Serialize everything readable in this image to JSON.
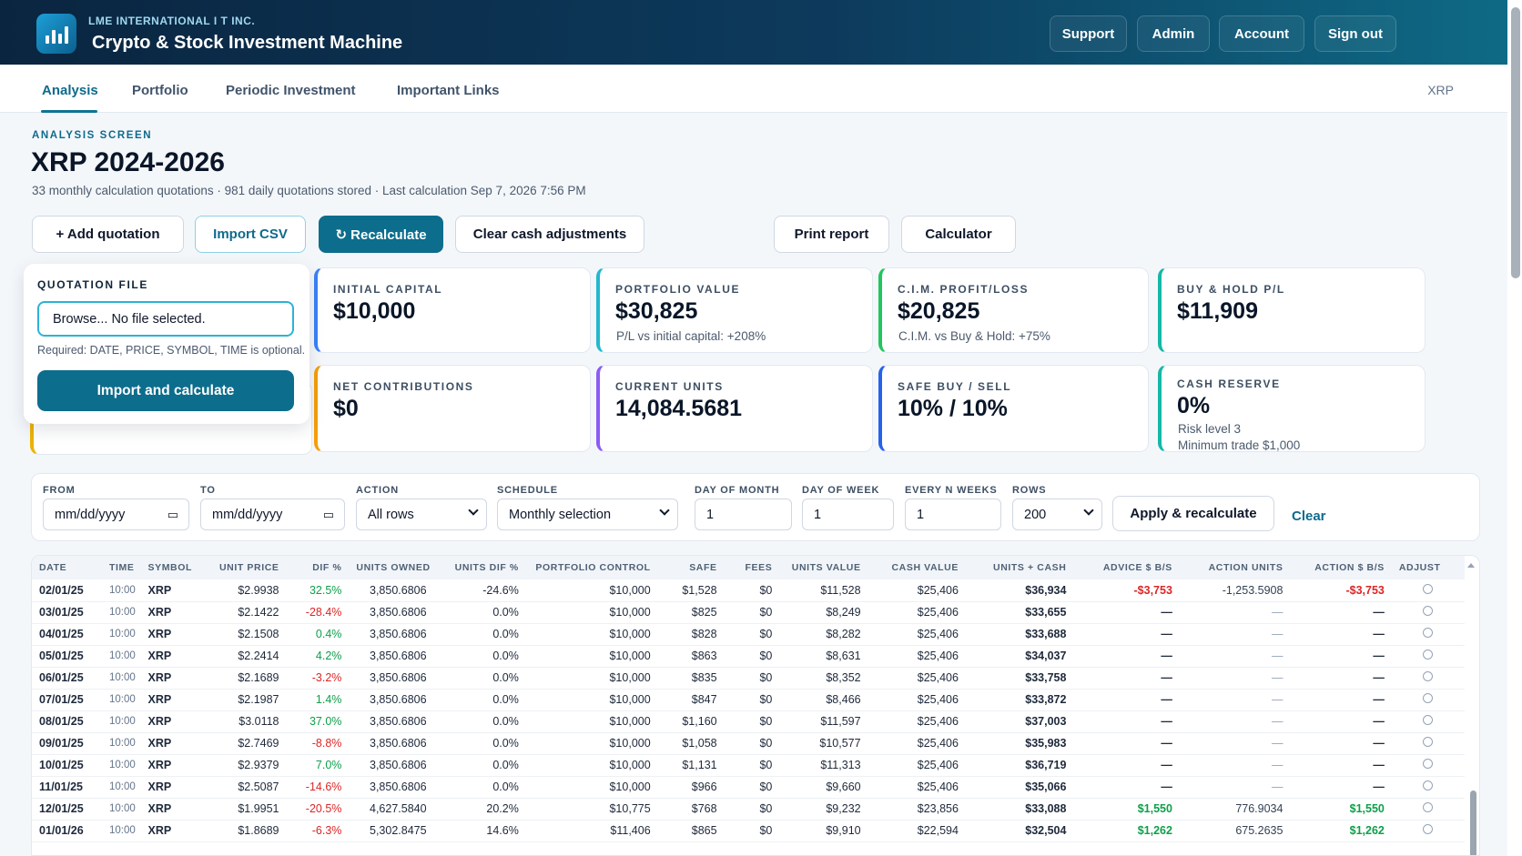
{
  "header": {
    "company": "LME INTERNATIONAL I T INC.",
    "app_title": "Crypto & Stock Investment Machine",
    "buttons": [
      "Support",
      "Admin",
      "Account",
      "Sign out"
    ]
  },
  "nav": {
    "tabs": [
      "Analysis",
      "Portfolio",
      "Periodic Investment",
      "Important Links"
    ],
    "active_tab": "Analysis",
    "symbol": "XRP"
  },
  "page": {
    "kicker": "ANALYSIS SCREEN",
    "title": "XRP 2024-2026",
    "subtitle": "33 monthly calculation quotations · 981 daily quotations stored · Last calculation Sep 7, 2026 7:56 PM"
  },
  "actions": {
    "add_quotation": "+ Add quotation",
    "import_csv": "Import CSV",
    "recalculate": "↻ Recalculate",
    "clear_cash": "Clear cash adjustments",
    "print_report": "Print report",
    "calculator": "Calculator"
  },
  "quotation_file": {
    "label": "QUOTATION FILE",
    "file_value": "Browse... No file selected.",
    "help": "Required: DATE, PRICE, SYMBOL, TIME is optional.",
    "button": "Import and calculate"
  },
  "cards": [
    {
      "label": "INITIAL CAPITAL",
      "value": "$10,000",
      "sub": "",
      "sub2": "",
      "color": "#3b82f6"
    },
    {
      "label": "PORTFOLIO VALUE",
      "value": "$30,825",
      "sub": "P/L vs initial capital: +208%",
      "sub2": "",
      "color": "#22b8cf"
    },
    {
      "label": "C.I.M. PROFIT/LOSS",
      "value": "$20,825",
      "sub": "C.I.M. vs Buy & Hold: +75%",
      "sub2": "",
      "color": "#22c55e"
    },
    {
      "label": "BUY & HOLD P/L",
      "value": "$11,909",
      "sub": "",
      "sub2": "",
      "color": "#14b8a6"
    },
    {
      "label": "NET CONTRIBUTIONS",
      "value": "$0",
      "sub": "",
      "sub2": "",
      "color": "#f59e0b"
    },
    {
      "label": "CURRENT UNITS",
      "value": "14,084.5681",
      "sub": "",
      "sub2": "",
      "color": "#8b5cf6"
    },
    {
      "label": "SAFE BUY / SELL",
      "value": "10% / 10%",
      "sub": "",
      "sub2": "",
      "color": "#2563eb"
    },
    {
      "label": "CASH RESERVE",
      "value": "0%",
      "sub": "Risk level 3",
      "sub2": "Minimum trade $1,000",
      "color": "#14b8a6"
    }
  ],
  "filters": {
    "from_label": "FROM",
    "from_value": "mm/dd/yyyy",
    "to_label": "TO",
    "to_value": "mm/dd/yyyy",
    "action_label": "ACTION",
    "action_value": "All rows",
    "schedule_label": "SCHEDULE",
    "schedule_value": "Monthly selection",
    "dom_label": "DAY OF MONTH",
    "dom_value": "1",
    "dow_label": "DAY OF WEEK",
    "dow_value": "1",
    "nweeks_label": "EVERY N WEEKS",
    "nweeks_value": "1",
    "rows_label": "ROWS",
    "rows_value": "200",
    "apply": "Apply & recalculate",
    "clear": "Clear"
  },
  "table": {
    "columns": [
      "DATE",
      "TIME",
      "SYMBOL",
      "UNIT PRICE",
      "DIF %",
      "UNITS OWNED",
      "UNITS DIF %",
      "PORTFOLIO CONTROL",
      "SAFE",
      "FEES",
      "UNITS VALUE",
      "CASH VALUE",
      "UNITS + CASH",
      "ADVICE $ B/S",
      "ACTION UNITS",
      "ACTION $ B/S",
      "ADJUST"
    ],
    "rows": [
      [
        "02/01/25",
        "10:00",
        "XRP",
        "$2.9938",
        "32.5%",
        "3,850.6806",
        "-24.6%",
        "$10,000",
        "$1,528",
        "$0",
        "$11,528",
        "$25,406",
        "$36,934",
        "-$3,753",
        "-1,253.5908",
        "-$3,753"
      ],
      [
        "03/01/25",
        "10:00",
        "XRP",
        "$2.1422",
        "-28.4%",
        "3,850.6806",
        "0.0%",
        "$10,000",
        "$825",
        "$0",
        "$8,249",
        "$25,406",
        "$33,655",
        "—",
        "—",
        "—"
      ],
      [
        "04/01/25",
        "10:00",
        "XRP",
        "$2.1508",
        "0.4%",
        "3,850.6806",
        "0.0%",
        "$10,000",
        "$828",
        "$0",
        "$8,282",
        "$25,406",
        "$33,688",
        "—",
        "—",
        "—"
      ],
      [
        "05/01/25",
        "10:00",
        "XRP",
        "$2.2414",
        "4.2%",
        "3,850.6806",
        "0.0%",
        "$10,000",
        "$863",
        "$0",
        "$8,631",
        "$25,406",
        "$34,037",
        "—",
        "—",
        "—"
      ],
      [
        "06/01/25",
        "10:00",
        "XRP",
        "$2.1689",
        "-3.2%",
        "3,850.6806",
        "0.0%",
        "$10,000",
        "$835",
        "$0",
        "$8,352",
        "$25,406",
        "$33,758",
        "—",
        "—",
        "—"
      ],
      [
        "07/01/25",
        "10:00",
        "XRP",
        "$2.1987",
        "1.4%",
        "3,850.6806",
        "0.0%",
        "$10,000",
        "$847",
        "$0",
        "$8,466",
        "$25,406",
        "$33,872",
        "—",
        "—",
        "—"
      ],
      [
        "08/01/25",
        "10:00",
        "XRP",
        "$3.0118",
        "37.0%",
        "3,850.6806",
        "0.0%",
        "$10,000",
        "$1,160",
        "$0",
        "$11,597",
        "$25,406",
        "$37,003",
        "—",
        "—",
        "—"
      ],
      [
        "09/01/25",
        "10:00",
        "XRP",
        "$2.7469",
        "-8.8%",
        "3,850.6806",
        "0.0%",
        "$10,000",
        "$1,058",
        "$0",
        "$10,577",
        "$25,406",
        "$35,983",
        "—",
        "—",
        "—"
      ],
      [
        "10/01/25",
        "10:00",
        "XRP",
        "$2.9379",
        "7.0%",
        "3,850.6806",
        "0.0%",
        "$10,000",
        "$1,131",
        "$0",
        "$11,313",
        "$25,406",
        "$36,719",
        "—",
        "—",
        "—"
      ],
      [
        "11/01/25",
        "10:00",
        "XRP",
        "$2.5087",
        "-14.6%",
        "3,850.6806",
        "0.0%",
        "$10,000",
        "$966",
        "$0",
        "$9,660",
        "$25,406",
        "$35,066",
        "—",
        "—",
        "—"
      ],
      [
        "12/01/25",
        "10:00",
        "XRP",
        "$1.9951",
        "-20.5%",
        "4,627.5840",
        "20.2%",
        "$10,775",
        "$768",
        "$0",
        "$9,232",
        "$23,856",
        "$33,088",
        "$1,550",
        "776.9034",
        "$1,550"
      ],
      [
        "01/01/26",
        "10:00",
        "XRP",
        "$1.8689",
        "-6.3%",
        "5,302.8475",
        "14.6%",
        "$11,406",
        "$865",
        "$0",
        "$9,910",
        "$22,594",
        "$32,504",
        "$1,262",
        "675.2635",
        "$1,262"
      ]
    ]
  },
  "colors": {
    "positive": "#0e9f4a",
    "negative": "#dc2626",
    "accent": "#0d6d8c"
  }
}
